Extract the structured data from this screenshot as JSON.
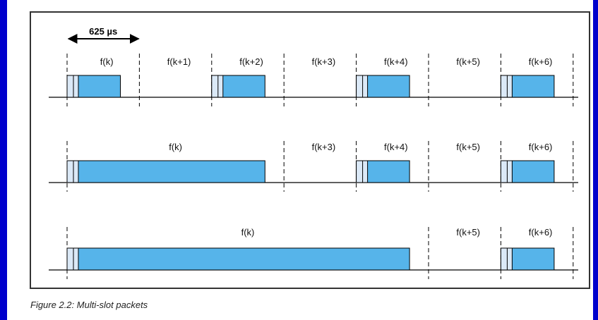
{
  "colors": {
    "background": "#0000cc",
    "packet_fill": "#56b4ea",
    "header_fill": "#dbe9f7",
    "line": "#000000"
  },
  "duration_label": "625 µs",
  "rows": [
    {
      "labels": [
        {
          "text": "f(k)",
          "slot": 0
        },
        {
          "text": "f(k+1)",
          "slot": 1
        },
        {
          "text": "f(k+2)",
          "slot": 2
        },
        {
          "text": "f(k+3)",
          "slot": 3
        },
        {
          "text": "f(k+4)",
          "slot": 4
        },
        {
          "text": "f(k+5)",
          "slot": 5
        },
        {
          "text": "f(k+6)",
          "slot": 6
        }
      ],
      "packets": [
        {
          "start_slot": 0,
          "slots": 1
        },
        {
          "start_slot": 2,
          "slots": 1
        },
        {
          "start_slot": 4,
          "slots": 1
        },
        {
          "start_slot": 6,
          "slots": 1
        }
      ]
    },
    {
      "labels": [
        {
          "text": "f(k)",
          "slot": 0,
          "span": 3
        },
        {
          "text": "f(k+3)",
          "slot": 3
        },
        {
          "text": "f(k+4)",
          "slot": 4
        },
        {
          "text": "f(k+5)",
          "slot": 5
        },
        {
          "text": "f(k+6)",
          "slot": 6
        }
      ],
      "packets": [
        {
          "start_slot": 0,
          "slots": 3
        },
        {
          "start_slot": 4,
          "slots": 1
        },
        {
          "start_slot": 6,
          "slots": 1
        }
      ]
    },
    {
      "labels": [
        {
          "text": "f(k)",
          "slot": 0,
          "span": 5
        },
        {
          "text": "f(k+5)",
          "slot": 5
        },
        {
          "text": "f(k+6)",
          "slot": 6
        }
      ],
      "packets": [
        {
          "start_slot": 0,
          "slots": 5
        },
        {
          "start_slot": 6,
          "slots": 1
        }
      ]
    }
  ],
  "caption": "Figure 2.2:  Multi-slot packets"
}
